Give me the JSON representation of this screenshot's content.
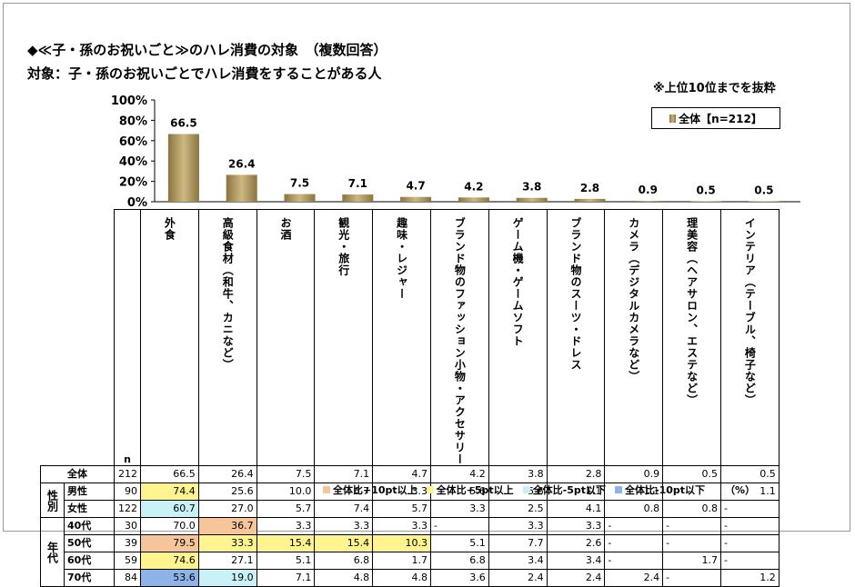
{
  "title": "◆≪子・孫のお祝いごと≫のハレ消費の対象　（複数回答）",
  "subtitle": "対象：子・孫のお祝いごとでハレ消費をすることがある人",
  "note": "※上位10位までを抜粋",
  "legend_label": "全体【n=212】",
  "chart_data": {
    "type": "bar",
    "categories": [
      "外食",
      "高級食材（和牛、カニなど）",
      "お酒",
      "観光・旅行",
      "趣味・レジャー",
      "ブランド物のファッション小物・アクセサリー",
      "ゲーム機・ゲームソフト",
      "ブランド物のスーツ・ドレス",
      "カメラ（デジタルカメラなど）",
      "理美容（ヘアサロン、エステなど）",
      "インテリア（テーブル、椅子など）"
    ],
    "values": [
      66.5,
      26.4,
      7.5,
      7.1,
      4.7,
      4.2,
      3.8,
      2.8,
      0.9,
      0.5,
      0.5
    ],
    "value_labels": [
      "66.5",
      "26.4",
      "7.5",
      "7.1",
      "4.7",
      "4.2",
      "3.8",
      "2.8",
      "0.9",
      "0.5",
      "0.5"
    ],
    "yticks": [
      "100%",
      "80%",
      "60%",
      "40%",
      "20%",
      "0%"
    ],
    "ylim": [
      0,
      100
    ],
    "series_name": "全体【n=212】",
    "bar_color": "#a88f55"
  },
  "table": {
    "n_header": "n",
    "rows": [
      {
        "group": "",
        "label": "全体",
        "n": "212",
        "cells": [
          [
            "66.5",
            ""
          ],
          [
            "26.4",
            ""
          ],
          [
            "7.5",
            ""
          ],
          [
            "7.1",
            ""
          ],
          [
            "4.7",
            ""
          ],
          [
            "4.2",
            ""
          ],
          [
            "3.8",
            ""
          ],
          [
            "2.8",
            ""
          ],
          [
            "0.9",
            ""
          ],
          [
            "0.5",
            ""
          ],
          [
            "0.5",
            ""
          ]
        ]
      },
      {
        "group": "性別",
        "span": 2,
        "label": "男性",
        "n": "90",
        "cells": [
          [
            "74.4",
            "yellow"
          ],
          [
            "25.6",
            ""
          ],
          [
            "10.0",
            ""
          ],
          [
            "6.7",
            ""
          ],
          [
            "3.3",
            ""
          ],
          [
            "5.6",
            ""
          ],
          [
            "5.6",
            ""
          ],
          [
            "1.1",
            ""
          ],
          [
            "1.1",
            ""
          ],
          [
            "-",
            ""
          ],
          [
            "1.1",
            ""
          ]
        ]
      },
      {
        "group": null,
        "label": "女性",
        "n": "122",
        "cells": [
          [
            "60.7",
            "cyan"
          ],
          [
            "27.0",
            ""
          ],
          [
            "5.7",
            ""
          ],
          [
            "7.4",
            ""
          ],
          [
            "5.7",
            ""
          ],
          [
            "3.3",
            ""
          ],
          [
            "2.5",
            ""
          ],
          [
            "4.1",
            ""
          ],
          [
            "0.8",
            ""
          ],
          [
            "0.8",
            ""
          ],
          [
            "-",
            ""
          ]
        ]
      },
      {
        "group": "年代",
        "span": 4,
        "label": "40代",
        "n": "30",
        "cells": [
          [
            "70.0",
            ""
          ],
          [
            "36.7",
            "orange"
          ],
          [
            "3.3",
            ""
          ],
          [
            "3.3",
            ""
          ],
          [
            "3.3",
            ""
          ],
          [
            "-",
            ""
          ],
          [
            "3.3",
            ""
          ],
          [
            "3.3",
            ""
          ],
          [
            "-",
            ""
          ],
          [
            "-",
            ""
          ],
          [
            "-",
            ""
          ]
        ]
      },
      {
        "group": null,
        "label": "50代",
        "n": "39",
        "cells": [
          [
            "79.5",
            "orange"
          ],
          [
            "33.3",
            "yellow"
          ],
          [
            "15.4",
            "yellow"
          ],
          [
            "15.4",
            "yellow"
          ],
          [
            "10.3",
            "yellow"
          ],
          [
            "5.1",
            ""
          ],
          [
            "7.7",
            ""
          ],
          [
            "2.6",
            ""
          ],
          [
            "-",
            ""
          ],
          [
            "-",
            ""
          ],
          [
            "-",
            ""
          ]
        ]
      },
      {
        "group": null,
        "label": "60代",
        "n": "59",
        "cells": [
          [
            "74.6",
            "yellow"
          ],
          [
            "27.1",
            ""
          ],
          [
            "5.1",
            ""
          ],
          [
            "6.8",
            ""
          ],
          [
            "1.7",
            ""
          ],
          [
            "6.8",
            ""
          ],
          [
            "3.4",
            ""
          ],
          [
            "3.4",
            ""
          ],
          [
            "-",
            ""
          ],
          [
            "1.7",
            ""
          ],
          [
            "-",
            ""
          ]
        ]
      },
      {
        "group": null,
        "label": "70代",
        "n": "84",
        "cells": [
          [
            "53.6",
            "blue"
          ],
          [
            "19.0",
            "cyan"
          ],
          [
            "7.1",
            ""
          ],
          [
            "4.8",
            ""
          ],
          [
            "4.8",
            ""
          ],
          [
            "3.6",
            ""
          ],
          [
            "2.4",
            ""
          ],
          [
            "2.4",
            ""
          ],
          [
            "2.4",
            ""
          ],
          [
            "-",
            ""
          ],
          [
            "1.2",
            ""
          ]
        ]
      }
    ]
  },
  "highlight_legend": [
    {
      "label": "全体比+10pt以上",
      "color": "#f7c59a"
    },
    {
      "label": "全体比+5pt以上",
      "color": "#fff48f"
    },
    {
      "label": "全体比-5pt以下",
      "color": "#c8f2f7"
    },
    {
      "label": "全体比-10pt以下",
      "color": "#8db3e8"
    }
  ],
  "unit": "（%）"
}
